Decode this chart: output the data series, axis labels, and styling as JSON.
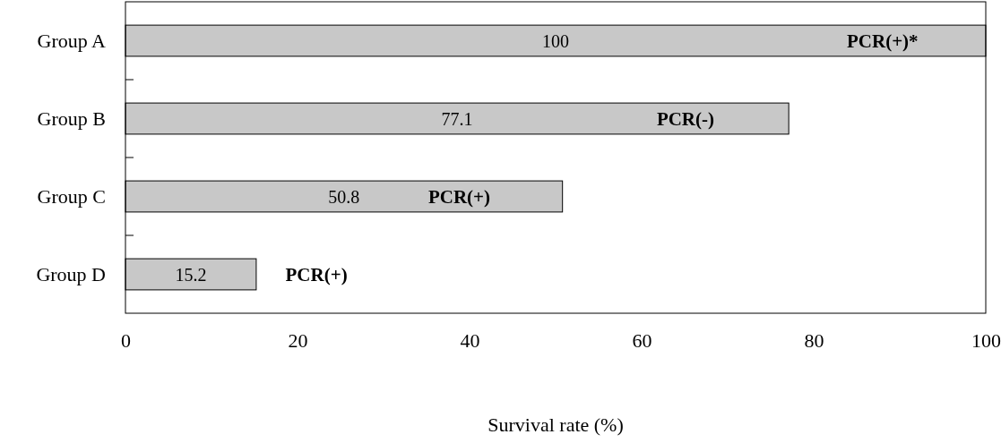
{
  "chart_data": {
    "type": "bar",
    "orientation": "horizontal",
    "categories": [
      "Group A",
      "Group B",
      "Group C",
      "Group D"
    ],
    "values": [
      100,
      77.1,
      50.8,
      15.2
    ],
    "color": "#c8c8c8",
    "data_labels": true,
    "xlim": [
      0,
      100
    ],
    "xticks": [
      0,
      20,
      40,
      60,
      80,
      100
    ],
    "xlabel": "Survival rate (%)",
    "grid": false,
    "annotations": [
      "PCR(+)*",
      "PCR(-)",
      "PCR(+)",
      "PCR(+)"
    ]
  }
}
